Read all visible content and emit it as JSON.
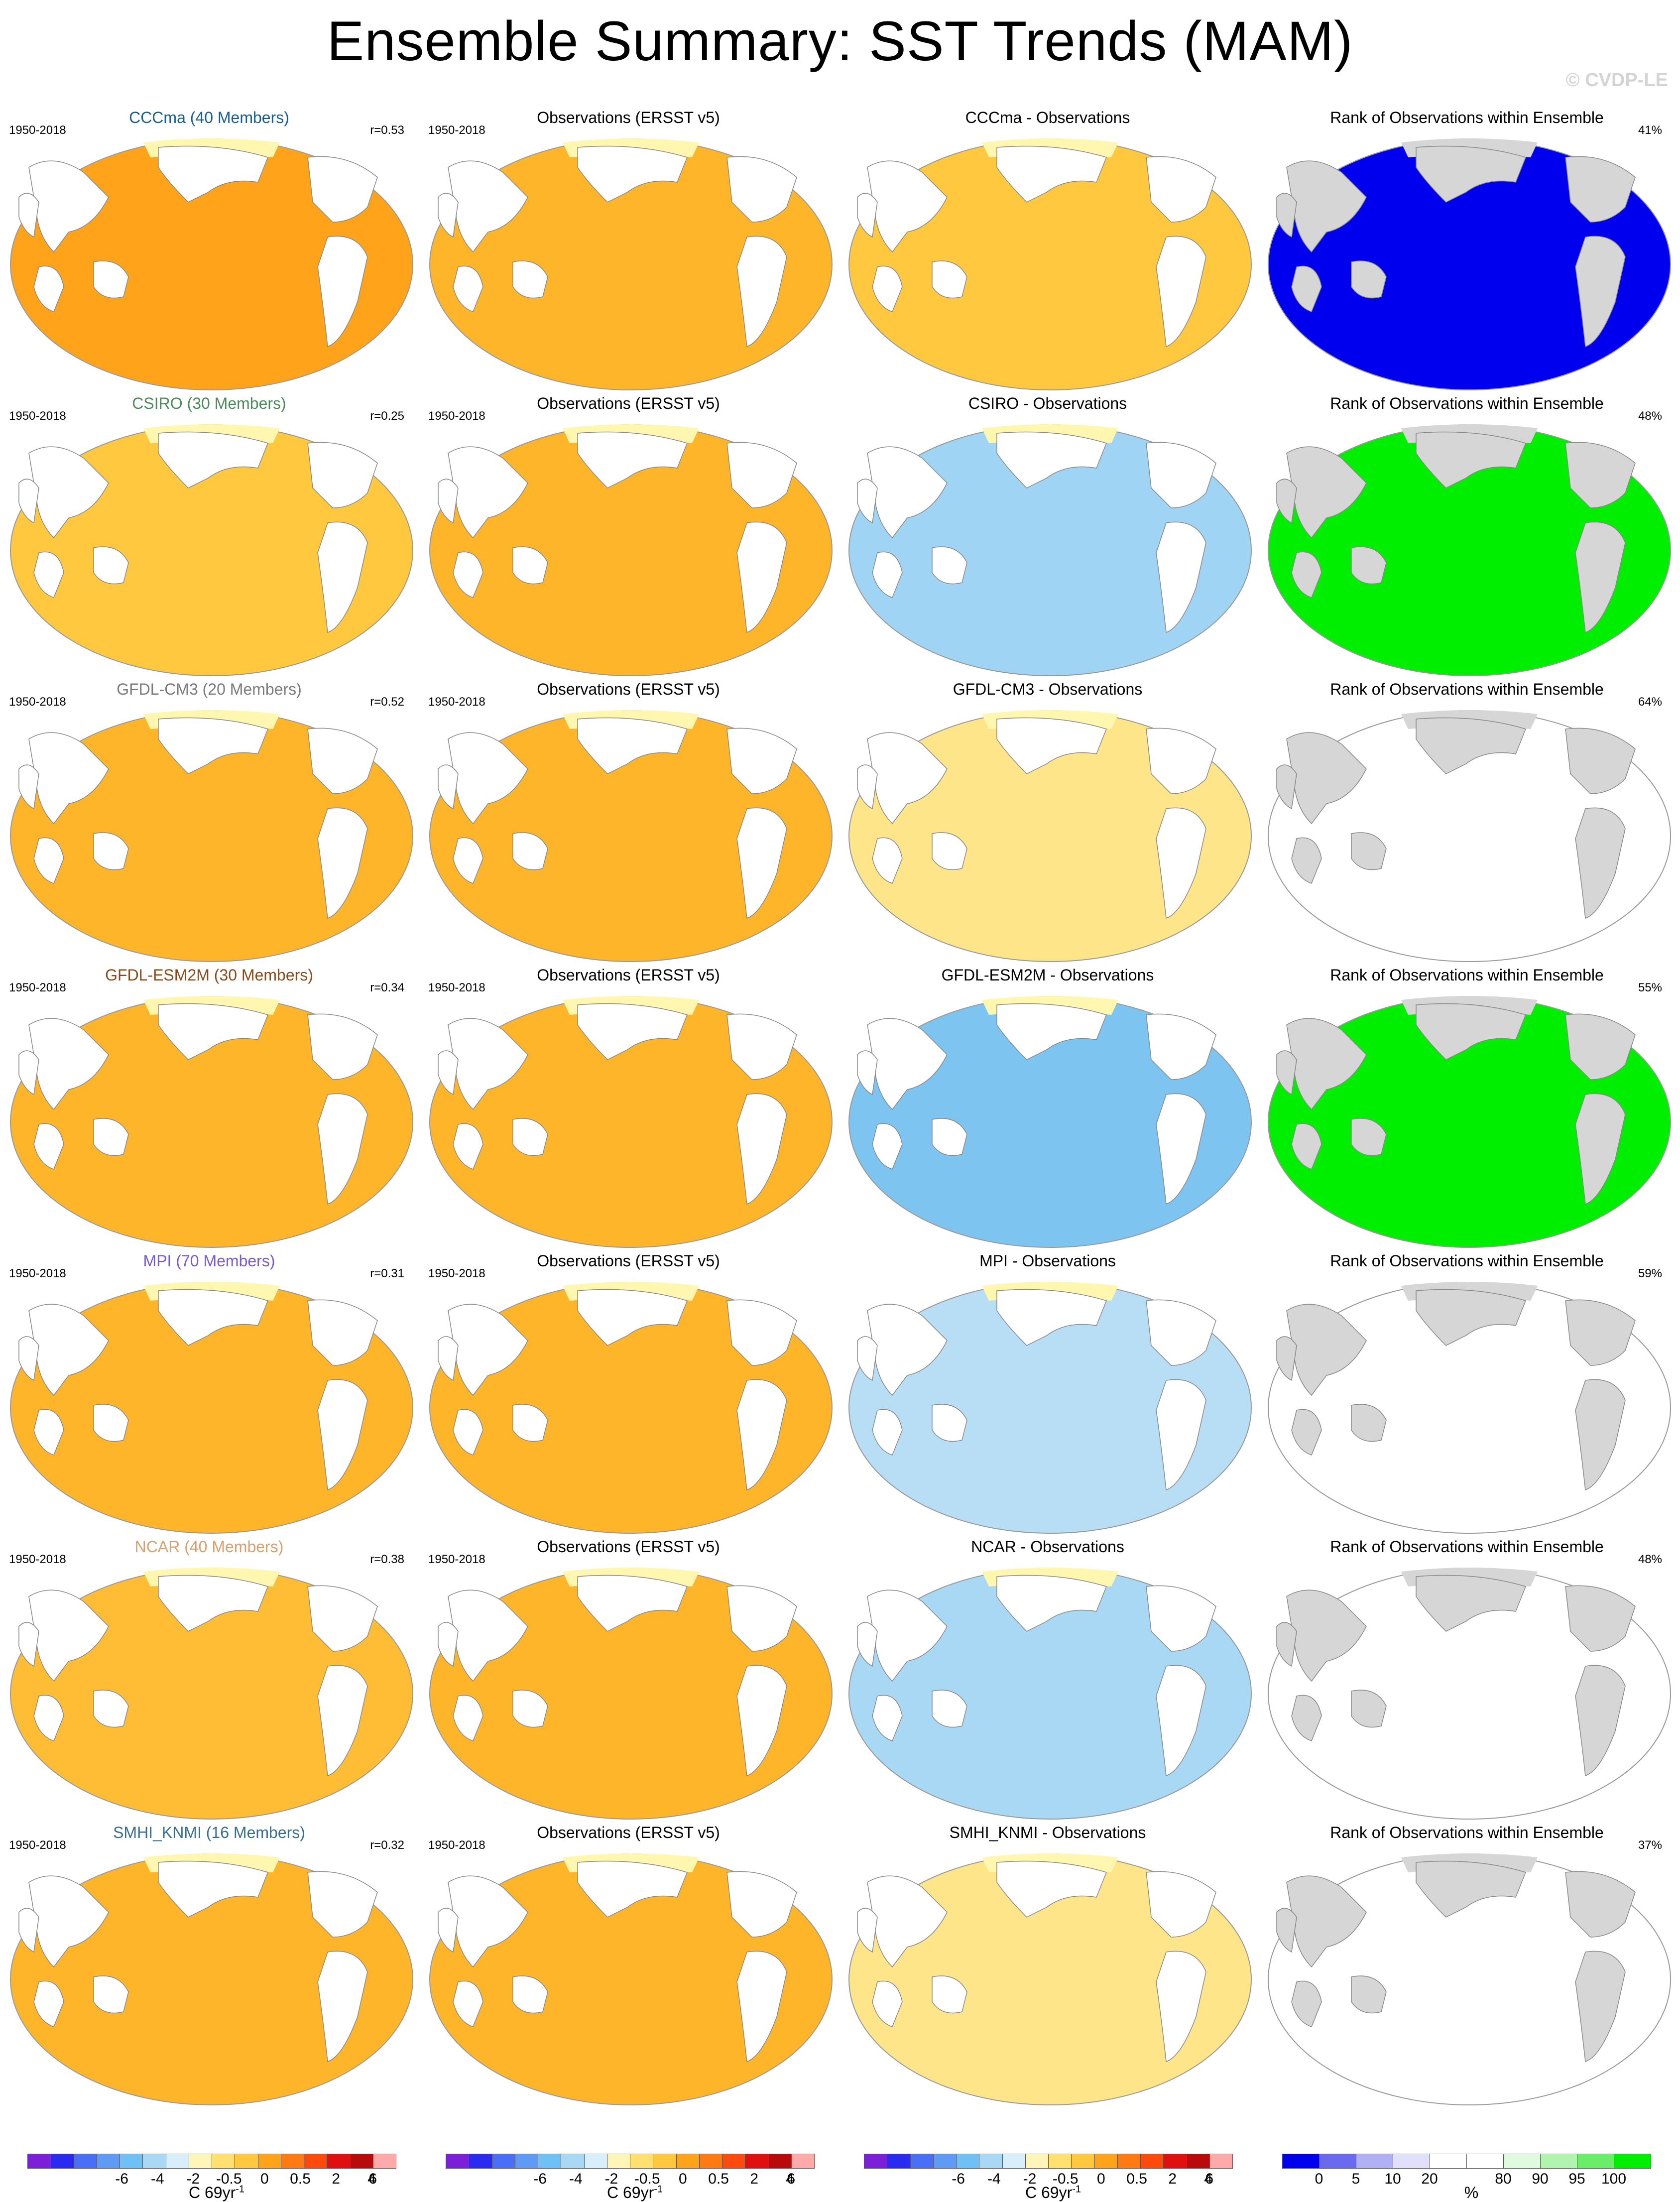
{
  "title": "Ensemble Summary: SST Trends (MAM)",
  "copyright": "© CVDP-LE",
  "period": "1950-2018",
  "obs_title": "Observations (ERSST v5)",
  "rank_title": "Rank of Observations within Ensemble",
  "rows": [
    {
      "model_title": "CCCma (40 Members)",
      "model_color": "#1a5d8f",
      "r": "r=0.53",
      "diff_title": "CCCma - Observations",
      "rank_pct": "41%",
      "model_fill": "#ffa31a",
      "diff_fill": "#ffc83f",
      "rank_fill": "#0000ee"
    },
    {
      "model_title": "CSIRO (30 Members)",
      "model_color": "#4a8a5c",
      "r": "r=0.25",
      "diff_title": "CSIRO - Observations",
      "rank_pct": "48%",
      "model_fill": "#ffc83f",
      "diff_fill": "#9fd4f4",
      "rank_fill": "#00ee00"
    },
    {
      "model_title": "GFDL-CM3 (20 Members)",
      "model_color": "#7a7a7a",
      "r": "r=0.52",
      "diff_title": "GFDL-CM3 - Observations",
      "rank_pct": "64%",
      "model_fill": "#ffb52a",
      "diff_fill": "#ffe58a",
      "rank_fill": "#ffffff"
    },
    {
      "model_title": "GFDL-ESM2M (30 Members)",
      "model_color": "#8a4a1a",
      "r": "r=0.34",
      "diff_title": "GFDL-ESM2M - Observations",
      "rank_pct": "55%",
      "model_fill": "#ffb52a",
      "diff_fill": "#7ec4f0",
      "rank_fill": "#00ee00"
    },
    {
      "model_title": "MPI (70 Members)",
      "model_color": "#7a5acf",
      "r": "r=0.31",
      "diff_title": "MPI - Observations",
      "rank_pct": "59%",
      "model_fill": "#ffb52a",
      "diff_fill": "#b8def6",
      "rank_fill": "#ffffff"
    },
    {
      "model_title": "NCAR (40 Members)",
      "model_color": "#d8a070",
      "r": "r=0.38",
      "diff_title": "NCAR - Observations",
      "rank_pct": "48%",
      "model_fill": "#ffbd35",
      "diff_fill": "#a8d8f4",
      "rank_fill": "#ffffff"
    },
    {
      "model_title": "SMHI_KNMI (16 Members)",
      "model_color": "#3a6e8e",
      "r": "r=0.32",
      "diff_title": "SMHI_KNMI - Observations",
      "rank_pct": "37%",
      "model_fill": "#ffb52a",
      "diff_fill": "#ffe58a",
      "rank_fill": "#ffffff"
    }
  ],
  "sst_colorbar": {
    "colors": [
      "#7b1fd8",
      "#2a2af0",
      "#4a6ef5",
      "#5f9bf5",
      "#6fc0f5",
      "#a8d8f4",
      "#d8eefa",
      "#fff5b8",
      "#ffe070",
      "#ffc83f",
      "#ffa31a",
      "#ff7a12",
      "#ff4a0e",
      "#e01010",
      "#b80c0c",
      "#ffaaaa"
    ],
    "labels": [
      "-6",
      "-4",
      "-2",
      "-0.5",
      "0",
      "0.5",
      "2",
      "4",
      "6"
    ],
    "units": "C 69yr",
    "units_sup": "-1"
  },
  "rank_colorbar": {
    "colors": [
      "#0000ee",
      "#6a6aee",
      "#b0b0f4",
      "#e0e0fa",
      "#ffffff",
      "#ffffff",
      "#e0fae0",
      "#b0f4b0",
      "#6aee6a",
      "#00ee00"
    ],
    "labels": [
      "0",
      "5",
      "10",
      "20",
      "80",
      "90",
      "95",
      "100"
    ],
    "units": "%"
  },
  "colors": {
    "land": "#ffffff",
    "rank_land": "#d6d6d6",
    "coast": "#888888"
  }
}
